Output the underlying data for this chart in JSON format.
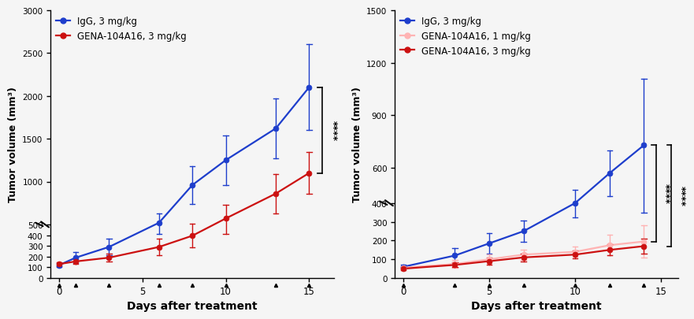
{
  "left": {
    "igg": {
      "x": [
        0,
        1,
        3,
        6,
        8,
        10,
        13,
        15
      ],
      "y": [
        120,
        190,
        290,
        520,
        960,
        1250,
        1620,
        2100
      ],
      "yerr": [
        20,
        50,
        80,
        110,
        220,
        290,
        350,
        500
      ],
      "color": "#1E3ECC",
      "label": "IgG, 3 mg/kg"
    },
    "gena": {
      "x": [
        0,
        1,
        3,
        6,
        8,
        10,
        13,
        15
      ],
      "y": [
        130,
        155,
        190,
        290,
        395,
        570,
        860,
        1100
      ],
      "yerr": [
        20,
        25,
        35,
        80,
        110,
        160,
        230,
        240
      ],
      "color": "#CC1111",
      "label": "GENA-104A16, 3 mg/kg"
    },
    "ylabel": "Tumor volume (mm³)",
    "xlabel": "Days after treatment",
    "ytick_positions": [
      0,
      100,
      200,
      300,
      400,
      500,
      1000,
      1500,
      2000,
      2500,
      3000
    ],
    "ytick_labels": [
      "0",
      "100",
      "200",
      "300",
      "400",
      "500",
      "1000",
      "1500",
      "2000",
      "2500",
      "3000"
    ],
    "xticks": [
      0,
      5,
      10,
      15
    ],
    "significance": "****"
  },
  "right": {
    "igg": {
      "x": [
        0,
        3,
        5,
        7,
        10,
        12,
        14
      ],
      "y": [
        60,
        120,
        185,
        250,
        400,
        570,
        730
      ],
      "yerr": [
        10,
        40,
        55,
        55,
        75,
        130,
        380
      ],
      "color": "#1E3ECC",
      "label": "IgG, 3 mg/kg"
    },
    "gena1": {
      "x": [
        0,
        3,
        5,
        7,
        10,
        12,
        14
      ],
      "y": [
        55,
        75,
        100,
        125,
        140,
        175,
        195
      ],
      "yerr": [
        10,
        20,
        28,
        28,
        28,
        55,
        85
      ],
      "color": "#FFB3B3",
      "label": "GENA-104A16, 1 mg/kg"
    },
    "gena3": {
      "x": [
        0,
        3,
        5,
        7,
        10,
        12,
        14
      ],
      "y": [
        50,
        70,
        90,
        110,
        125,
        150,
        170
      ],
      "yerr": [
        8,
        12,
        18,
        22,
        22,
        30,
        38
      ],
      "color": "#CC1111",
      "label": "GENA-104A16, 3 mg/kg"
    },
    "ylabel": "Tumor volume (mm³)",
    "xlabel": "Days after treatment",
    "ytick_positions": [
      0,
      100,
      200,
      300,
      400,
      600,
      900,
      1200,
      1500
    ],
    "ytick_labels": [
      "0",
      "100",
      "200",
      "300",
      "400",
      "600",
      "900",
      "1200",
      "1500"
    ],
    "xticks": [
      0,
      5,
      10,
      15
    ],
    "significance1": "****",
    "significance2": "****"
  },
  "bg_color": "#F5F5F5",
  "marker_size": 5,
  "linewidth": 1.6,
  "capsize": 3,
  "elinewidth": 1.0
}
